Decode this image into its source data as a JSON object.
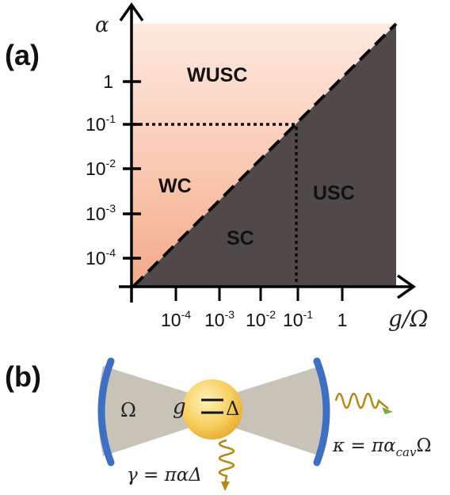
{
  "panel_a": {
    "label": "(a)",
    "y_axis_label": "α",
    "x_axis_label": "g/Ω",
    "regions": [
      "WUSC",
      "WC",
      "SC",
      "USC"
    ],
    "y_ticks": [
      {
        "base": "1",
        "exp": ""
      },
      {
        "base": "10",
        "exp": "-1"
      },
      {
        "base": "10",
        "exp": "-2"
      },
      {
        "base": "10",
        "exp": "-3"
      },
      {
        "base": "10",
        "exp": "-4"
      }
    ],
    "x_ticks": [
      {
        "base": "10",
        "exp": "-4"
      },
      {
        "base": "10",
        "exp": "-3"
      },
      {
        "base": "10",
        "exp": "-2"
      },
      {
        "base": "10",
        "exp": "-1"
      },
      {
        "base": "1",
        "exp": ""
      }
    ],
    "colors": {
      "weak_region": "#f8c0a6",
      "strong_region": "#4f4a49"
    }
  },
  "panel_b": {
    "label": "(b)",
    "cavity_frequency": "Ω",
    "coupling": "g",
    "emitter_splitting": "Δ",
    "emitter_decay": "γ = παΔ",
    "cavity_decay_prefix": "κ = πα",
    "cavity_decay_sub": "cav",
    "cavity_decay_suffix": "Ω",
    "colors": {
      "mirror": "#3d6fc4",
      "cavity": "#c7c3b7",
      "emitter": "#f7cf5e",
      "photon": "#b8870e"
    }
  }
}
